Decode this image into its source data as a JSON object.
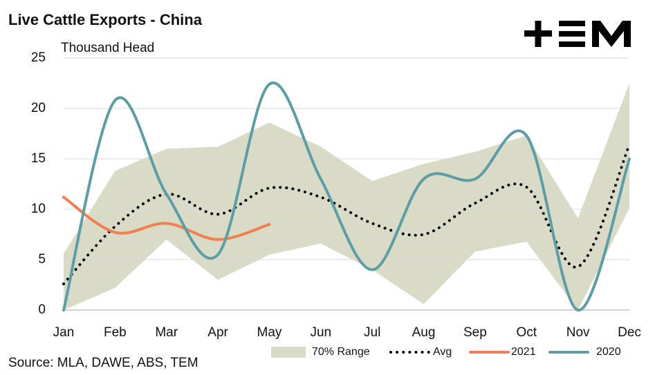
{
  "chart_data": {
    "type": "line",
    "title": "Live Cattle Exports - China",
    "subtitle": "Thousand Head",
    "source": "Source: MLA, DAWE, ABS, TEM",
    "categories": [
      "Jan",
      "Feb",
      "Mar",
      "Apr",
      "May",
      "Jun",
      "Jul",
      "Aug",
      "Sep",
      "Oct",
      "Nov",
      "Dec"
    ],
    "ylim": [
      0,
      25
    ],
    "yticks": [
      0,
      5,
      10,
      15,
      20,
      25
    ],
    "grid": true,
    "series": [
      {
        "name": "70% Range",
        "color": "#d9dbc6",
        "low": [
          0,
          2.2,
          7,
          3,
          5.5,
          6.6,
          4,
          0.6,
          5.8,
          6.8,
          0,
          10.1
        ],
        "high": [
          5.6,
          13.8,
          16,
          16.2,
          18.6,
          16.2,
          12.8,
          14.5,
          15.7,
          17.3,
          9.1,
          22.5
        ]
      },
      {
        "name": "Avg",
        "color": "#000000",
        "style": "dotted",
        "values": [
          2.6,
          8.3,
          11.5,
          9.5,
          12.1,
          11.2,
          8.6,
          7.5,
          10.6,
          12.2,
          4.3,
          16.4
        ]
      },
      {
        "name": "2021",
        "color": "#f08050",
        "values": [
          11.2,
          7.7,
          8.6,
          7.0,
          8.5,
          null,
          null,
          null,
          null,
          null,
          null,
          null
        ]
      },
      {
        "name": "2020",
        "color": "#5b9ea6",
        "values": [
          0,
          20.8,
          11.5,
          5.5,
          22.4,
          13,
          4,
          13,
          13,
          17.3,
          0,
          15
        ]
      }
    ]
  }
}
